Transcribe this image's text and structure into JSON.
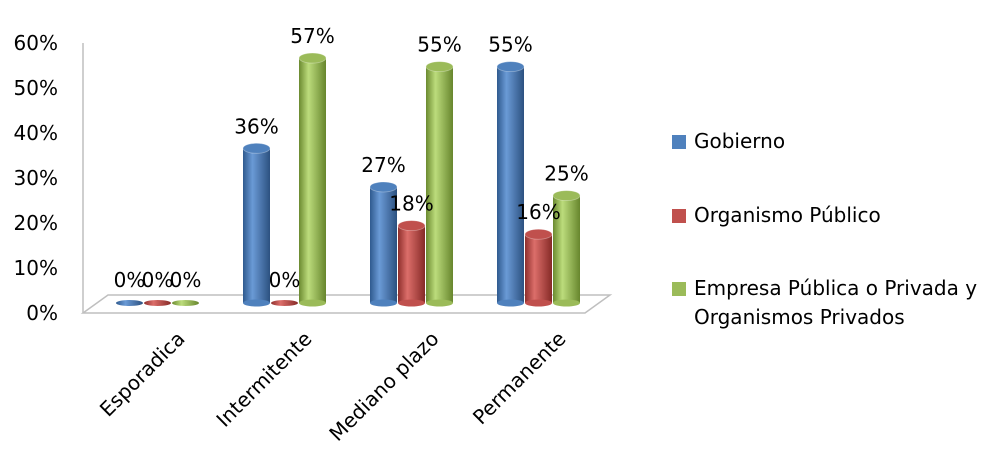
{
  "chart_data": {
    "type": "bar",
    "categories": [
      "Esporadica",
      "Intermitente",
      "Mediano plazo",
      "Permanente"
    ],
    "series": [
      {
        "name": "Gobierno",
        "values": [
          0,
          36,
          27,
          55
        ],
        "labels": [
          "0%",
          "36%",
          "27%",
          "55%"
        ]
      },
      {
        "name": "Organismo Público",
        "values": [
          0,
          0,
          18,
          16
        ],
        "labels": [
          "0%",
          "0%",
          "18%",
          "16%"
        ]
      },
      {
        "name": "Empresa Pública o Privada y Organismos Privados",
        "values": [
          0,
          57,
          55,
          25
        ],
        "labels": [
          "0%",
          "57%",
          "55%",
          "25%"
        ]
      }
    ],
    "ylim": [
      0,
      60
    ],
    "yticks": [
      "0%",
      "10%",
      "20%",
      "30%",
      "40%",
      "50%",
      "60%"
    ],
    "legend_position": "right",
    "colors": [
      "#4F81BD",
      "#C0504D",
      "#9BBB59"
    ]
  },
  "legend": {
    "items": [
      {
        "lines": [
          "Gobierno"
        ]
      },
      {
        "lines": [
          "Organismo Público"
        ]
      },
      {
        "lines": [
          "Empresa Pública o Privada y",
          "Organismos Privados"
        ]
      }
    ]
  }
}
